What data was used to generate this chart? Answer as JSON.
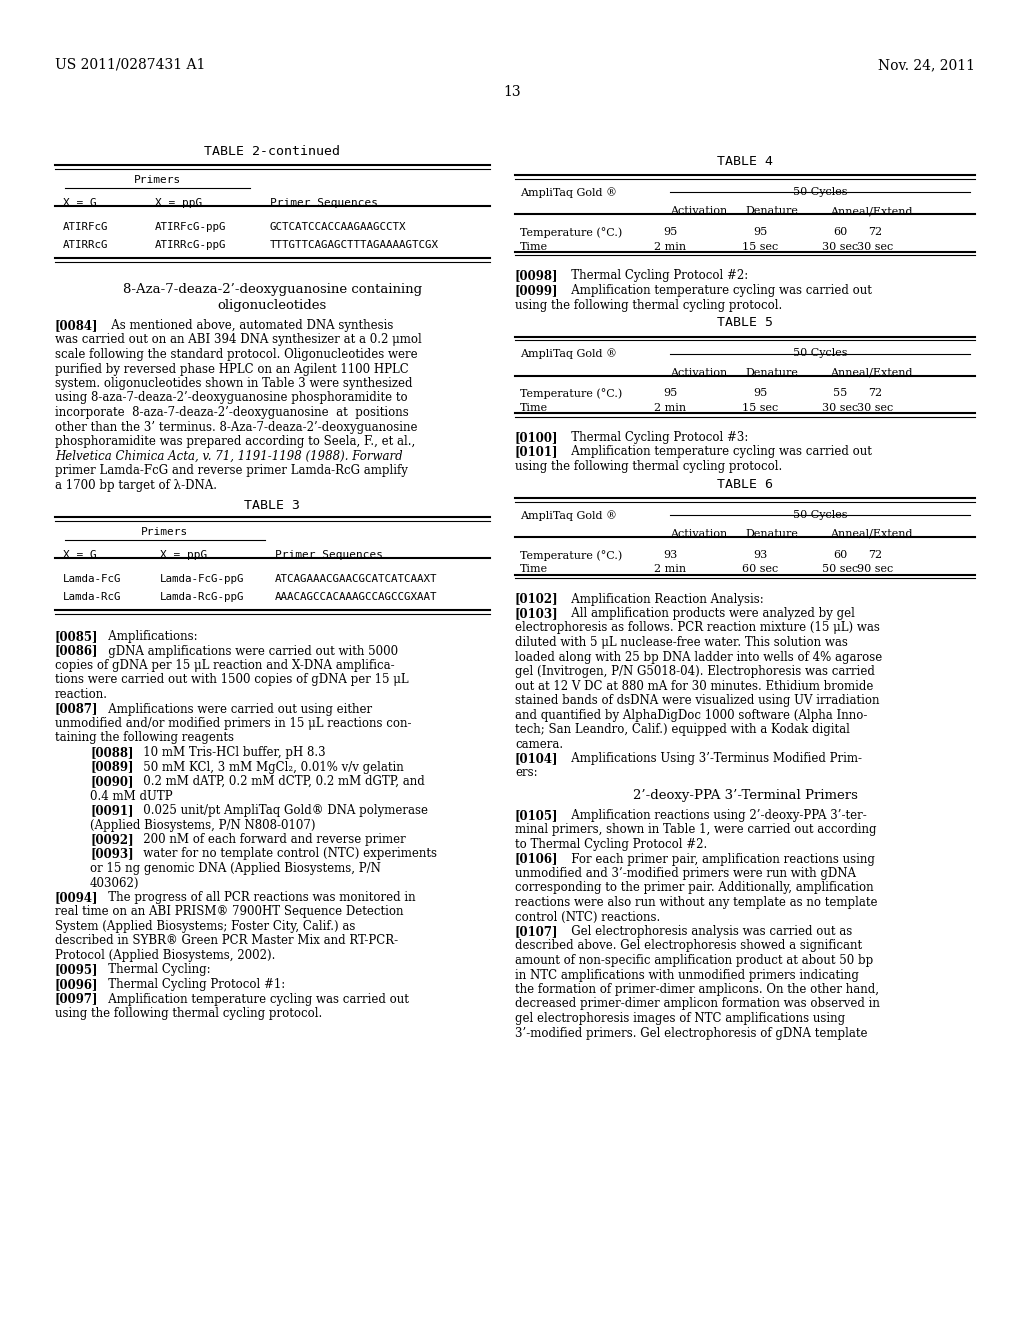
{
  "header_left": "US 2011/0287431 A1",
  "header_right": "Nov. 24, 2011",
  "page_number": "13",
  "background_color": "#ffffff",
  "table2_rows": [
    [
      "ATIRFcG",
      "ATIRFcG-ppG",
      "GCTCATCCACCAAGAAGCCTX"
    ],
    [
      "ATIRRcG",
      "ATIRRcG-ppG",
      "TTTGTTCAGAGCTTTAGAAAAGTCGX"
    ]
  ],
  "section_title_line1": "8-Aza-7-deaza-2’-deoxyguanosine containing",
  "section_title_line2": "oligonucleotides",
  "para0084_lines": [
    "[0084]   As mentioned above, automated DNA synthesis",
    "was carried out on an ABI 394 DNA synthesizer at a 0.2 μmol",
    "scale following the standard protocol. Oligonucleotides were",
    "purified by reversed phase HPLC on an Agilent 1100 HPLC",
    "system. oligonucleotides shown in Table 3 were synthesized",
    "using 8-aza-7-deaza-2’-deoxyguanosine phosphoramidite to",
    "incorporate  8-aza-7-deaza-2’-deoxyguanosine  at  positions",
    "other than the 3’ terminus. 8-Aza-7-deaza-2’-deoxyguanosine",
    "phosphoramidite was prepared according to Seela, F., et al.,",
    "ITALIC:Helvetica Chimica Acta, v. 71, 1191-1198 (1988). Forward",
    "primer Lamda-FcG and reverse primer Lamda-RcG amplify",
    "a 1700 bp target of λ-DNA."
  ],
  "table3_rows": [
    [
      "Lamda-FcG",
      "Lamda-FcG-ppG",
      "ATCAGAAACGAACGCATCATCAAXT"
    ],
    [
      "Lamda-RcG",
      "Lamda-RcG-ppG",
      "AAACAGCCACAAAGCCAGCCGXAAT"
    ]
  ],
  "para_left_sections": [
    {
      "tag": "[0085]",
      "lines": [
        "   Amplifications:"
      ]
    },
    {
      "tag": "[0086]",
      "lines": [
        "   gDNA amplifications were carried out with 5000",
        "copies of gDNA per 15 μL reaction and X-DNA amplifica-",
        "tions were carried out with 1500 copies of gDNA per 15 μL",
        "reaction."
      ]
    },
    {
      "tag": "[0087]",
      "lines": [
        "   Amplifications were carried out using either",
        "unmodified and/or modified primers in 15 μL reactions con-",
        "taining the following reagents"
      ]
    },
    {
      "tag": "[0088]",
      "lines": [
        "   10 mM Tris-HCl buffer, pH 8.3"
      ],
      "indent": true
    },
    {
      "tag": "[0089]",
      "lines": [
        "   50 mM KCl, 3 mM MgCl₂, 0.01% v/v gelatin"
      ],
      "indent": true
    },
    {
      "tag": "[0090]",
      "lines": [
        "   0.2 mM dATP, 0.2 mM dCTP, 0.2 mM dGTP, and",
        "0.4 mM dUTP"
      ],
      "indent": true
    },
    {
      "tag": "[0091]",
      "lines": [
        "   0.025 unit/pt AmpliTaq Gold® DNA polymerase",
        "(Applied Biosystems, P/N N808-0107)"
      ],
      "indent": true
    },
    {
      "tag": "[0092]",
      "lines": [
        "   200 nM of each forward and reverse primer"
      ],
      "indent": true
    },
    {
      "tag": "[0093]",
      "lines": [
        "   water for no template control (NTC) experiments",
        "or 15 ng genomic DNA (Applied Biosystems, P/N",
        "403062)"
      ],
      "indent": true
    },
    {
      "tag": "[0094]",
      "lines": [
        "   The progress of all PCR reactions was monitored in",
        "real time on an ABI PRISM® 7900HT Sequence Detection",
        "System (Applied Biosystems; Foster City, Calif.) as",
        "described in SYBR® Green PCR Master Mix and RT-PCR-",
        "Protocol (Applied Biosystems, 2002)."
      ]
    },
    {
      "tag": "[0095]",
      "lines": [
        "   Thermal Cycling:"
      ]
    },
    {
      "tag": "[0096]",
      "lines": [
        "   Thermal Cycling Protocol #1:"
      ]
    },
    {
      "tag": "[0097]",
      "lines": [
        "   Amplification temperature cycling was carried out",
        "using the following thermal cycling protocol."
      ]
    }
  ],
  "table4": {
    "title": "TABLE 4",
    "ampli_label": "AmpliTaq Gold ®",
    "cycles_label": "50 Cycles",
    "sub_headers": [
      "Activation",
      "Denature",
      "Anneal/Extend"
    ],
    "row_labels": [
      "Temperature (°C.)",
      "Time"
    ],
    "row1": [
      "95",
      "95",
      "60",
      "72"
    ],
    "row2": [
      "2 min",
      "15 sec",
      "30 sec",
      "30 sec"
    ]
  },
  "table5": {
    "title": "TABLE 5",
    "ampli_label": "AmpliTaq Gold ®",
    "cycles_label": "50 Cycles",
    "sub_headers": [
      "Activation",
      "Denature",
      "Anneal/Extend"
    ],
    "row_labels": [
      "Temperature (°C.)",
      "Time"
    ],
    "row1": [
      "95",
      "95",
      "55",
      "72"
    ],
    "row2": [
      "2 min",
      "15 sec",
      "30 sec",
      "30 sec"
    ]
  },
  "table6": {
    "title": "TABLE 6",
    "ampli_label": "AmpliTaq Gold ®",
    "cycles_label": "50 Cycles",
    "sub_headers": [
      "Activation",
      "Denature",
      "Anneal/Extend"
    ],
    "row_labels": [
      "Temperature (°C.)",
      "Time"
    ],
    "row1": [
      "93",
      "93",
      "60",
      "72"
    ],
    "row2": [
      "2 min",
      "60 sec",
      "50 sec",
      "90 sec"
    ]
  },
  "para_right_0098_0099": [
    {
      "tag": "[0098]",
      "line": "   Thermal Cycling Protocol #2:"
    },
    {
      "tag": "[0099]",
      "line": "   Amplification temperature cycling was carried out"
    }
  ],
  "para_right_0099_cont": "using the following thermal cycling protocol.",
  "para_right_0100_0101": [
    {
      "tag": "[0100]",
      "line": "   Thermal Cycling Protocol #3:"
    },
    {
      "tag": "[0101]",
      "line": "   Amplification temperature cycling was carried out"
    }
  ],
  "para_right_0101_cont": "using the following thermal cycling protocol.",
  "para_right_sections": [
    {
      "tag": "[0102]",
      "lines": [
        "   Amplification Reaction Analysis:"
      ]
    },
    {
      "tag": "[0103]",
      "lines": [
        "   All amplification products were analyzed by gel",
        "electrophoresis as follows. PCR reaction mixture (15 μL) was",
        "diluted with 5 μL nuclease-free water. This solution was",
        "loaded along with 25 bp DNA ladder into wells of 4% agarose",
        "gel (Invitrogen, P/N G5018-04). Electrophoresis was carried",
        "out at 12 V DC at 880 mA for 30 minutes. Ethidium bromide",
        "stained bands of dsDNA were visualized using UV irradiation",
        "and quantified by AlphaDigDoc 1000 software (Alpha Inno-",
        "tech; San Leandro, Calif.) equipped with a Kodak digital",
        "camera."
      ]
    },
    {
      "tag": "[0104]",
      "lines": [
        "   Amplifications Using 3’-Terminus Modified Prim-",
        "ers:"
      ]
    }
  ],
  "section_title2": "2’-deoxy-PPA 3’-Terminal Primers",
  "para_right_sections2": [
    {
      "tag": "[0105]",
      "lines": [
        "   Amplification reactions using 2’-deoxy-PPA 3’-ter-",
        "minal primers, shown in Table 1, were carried out according",
        "to Thermal Cycling Protocol #2."
      ]
    },
    {
      "tag": "[0106]",
      "lines": [
        "   For each primer pair, amplification reactions using",
        "unmodified and 3’-modified primers were run with gDNA",
        "corresponding to the primer pair. Additionally, amplification",
        "reactions were also run without any template as no template",
        "control (NTC) reactions."
      ]
    },
    {
      "tag": "[0107]",
      "lines": [
        "   Gel electrophoresis analysis was carried out as",
        "described above. Gel electrophoresis showed a significant",
        "amount of non-specific amplification product at about 50 bp",
        "in NTC amplifications with unmodified primers indicating",
        "the formation of primer-dimer amplicons. On the other hand,",
        "decreased primer-dimer amplicon formation was observed in",
        "gel electrophoresis images of NTC amplifications using",
        "3’-modified primers. Gel electrophoresis of gDNA template"
      ]
    }
  ]
}
